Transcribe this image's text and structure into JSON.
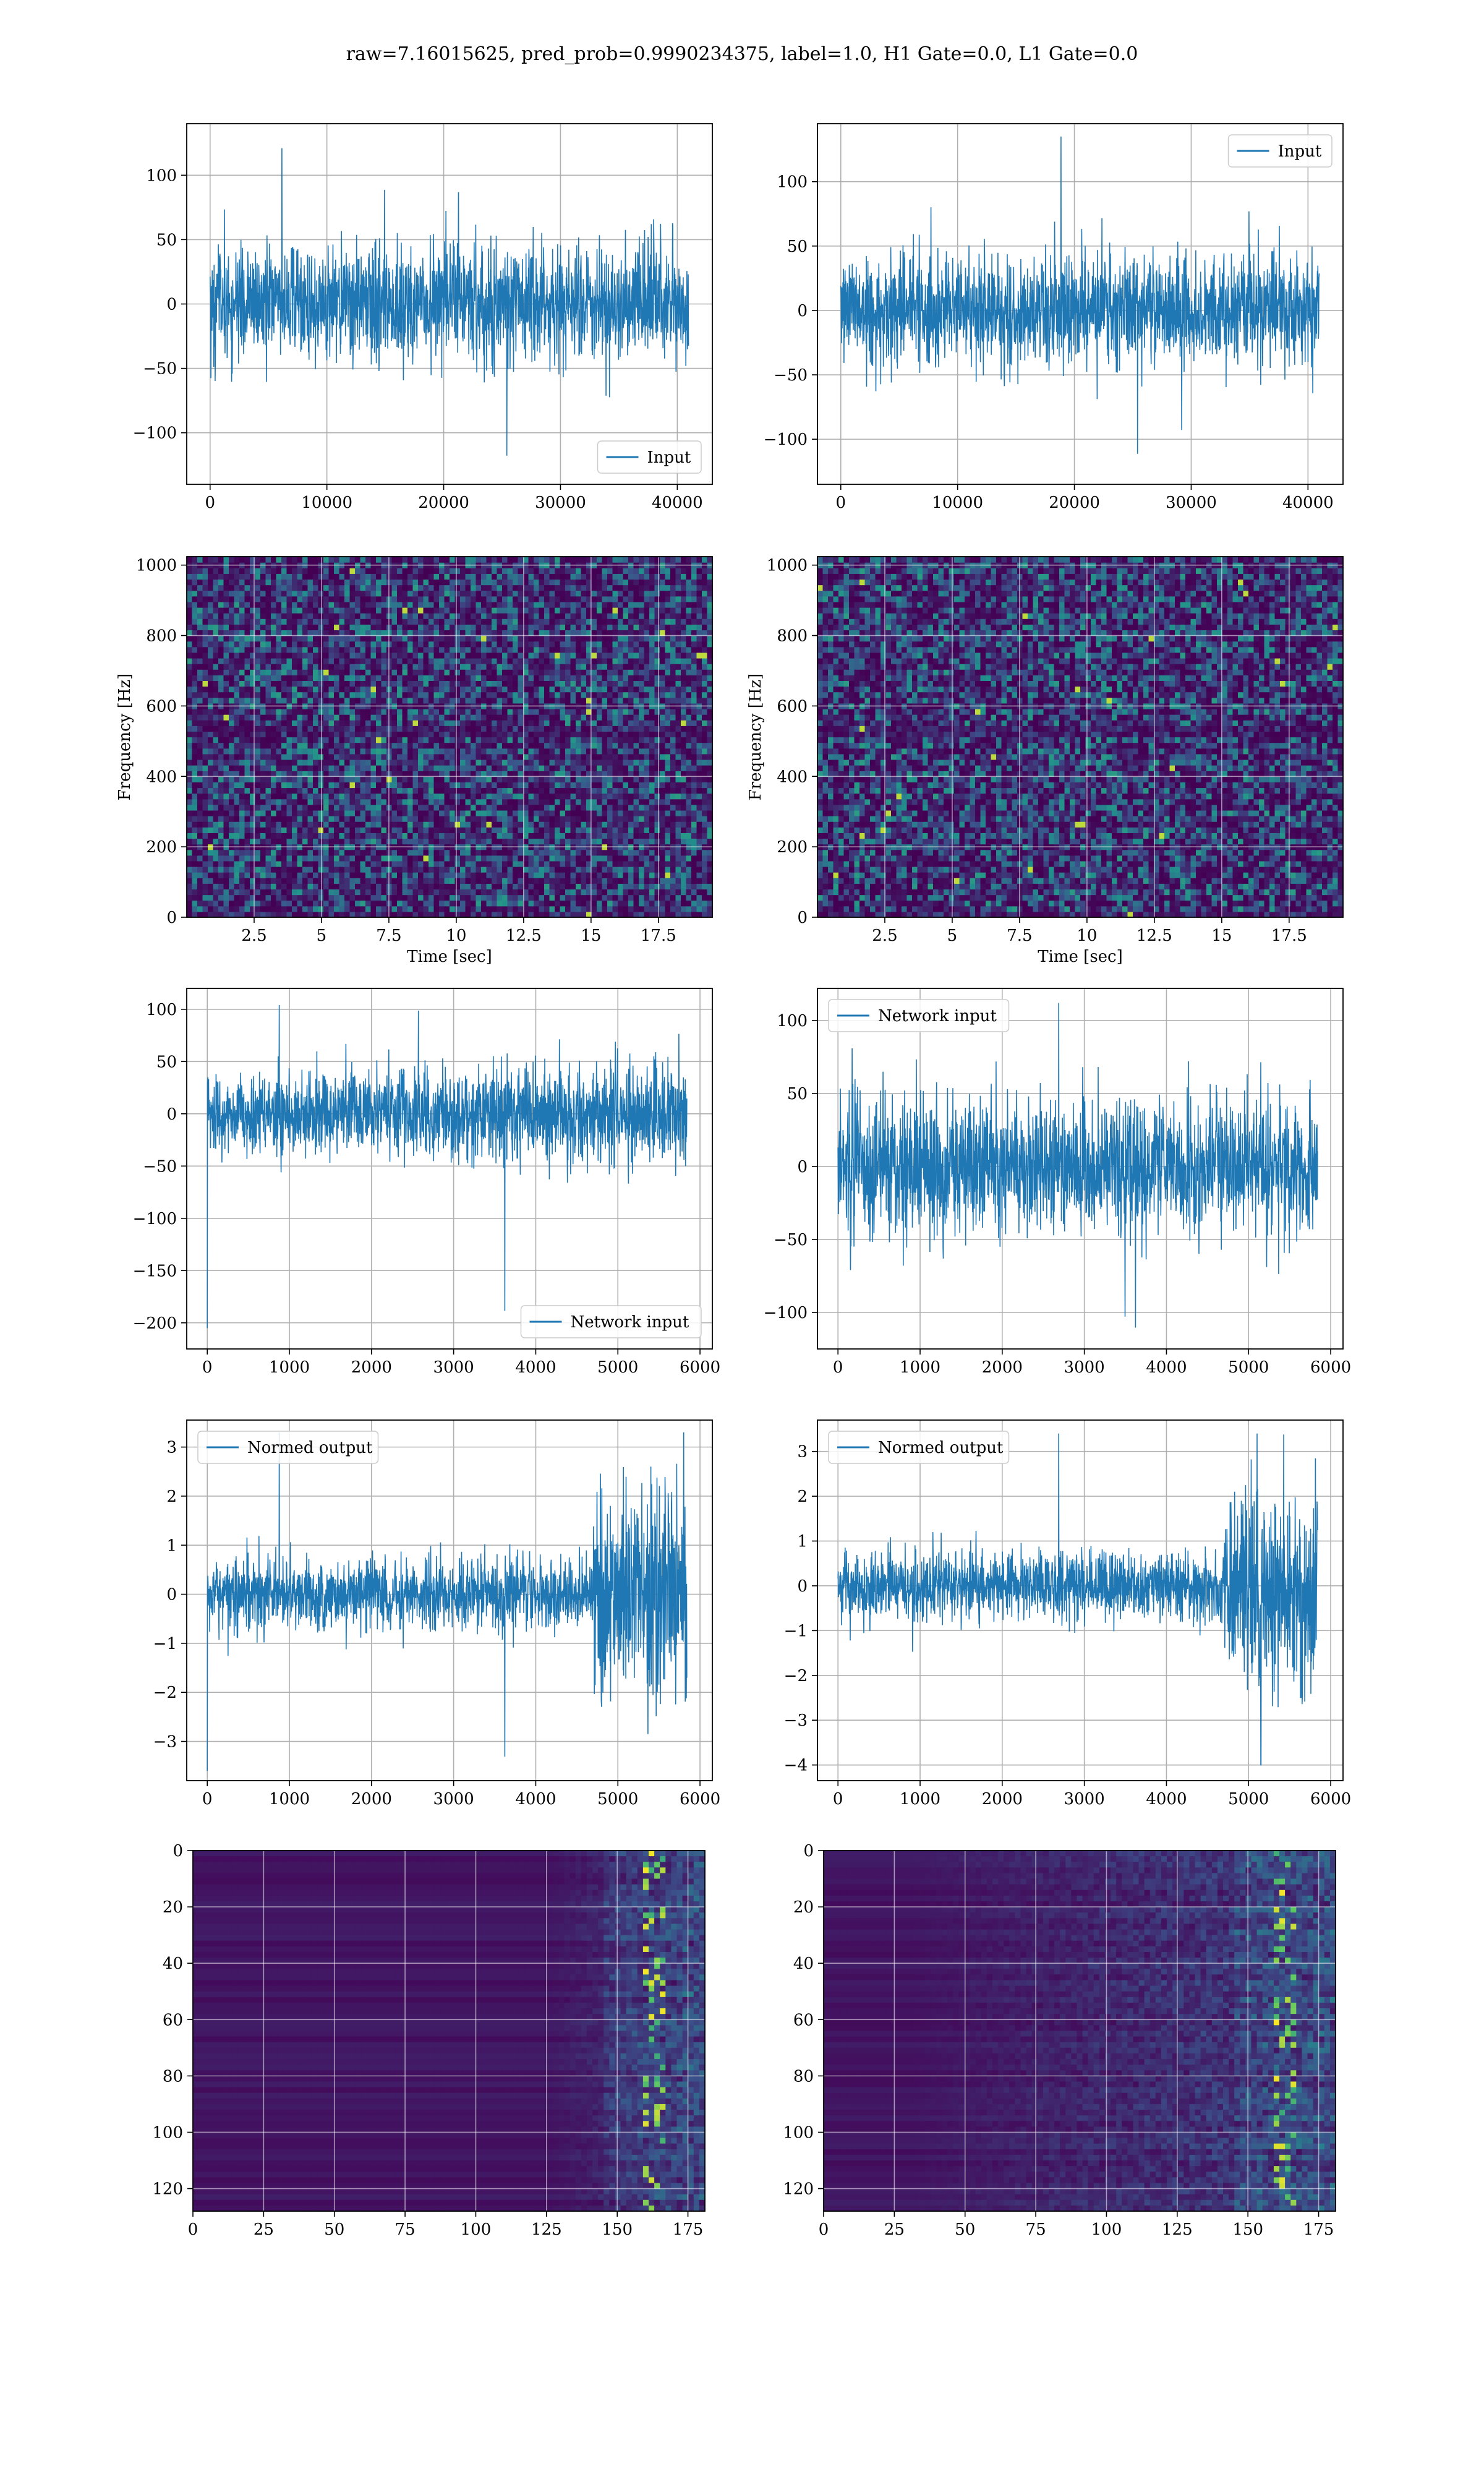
{
  "figure": {
    "suptitle": "raw=7.16015625, pred_prob=0.9990234375, label=1.0, H1 Gate=0.0, L1 Gate=0.0"
  },
  "colors": {
    "line": "#1f77b4",
    "viridis_dark": "#440154",
    "viridis_blue": "#2f6a8c",
    "viridis_teal": "#21918c",
    "viridis_green": "#5ec962",
    "viridis_yellow": "#fde725",
    "grid": "#b0b0b0"
  },
  "chart_data": [
    {
      "id": "h1-input",
      "type": "line",
      "series": [
        {
          "name": "Input",
          "kind": "noise",
          "x_max": 40960,
          "center": 0,
          "sigma": 22,
          "extreme_min": -128,
          "extreme_max": 121
        }
      ],
      "xlim": [
        -2000,
        43000
      ],
      "ylim": [
        -140,
        140
      ],
      "xticks": [
        0,
        10000,
        20000,
        30000,
        40000
      ],
      "yticks": [
        -100,
        -50,
        0,
        50,
        100
      ],
      "legend": "lower right",
      "grid": true,
      "xlabel": "",
      "ylabel": ""
    },
    {
      "id": "l1-input",
      "type": "line",
      "series": [
        {
          "name": "Input",
          "kind": "noise",
          "x_max": 40960,
          "center": 0,
          "sigma": 21,
          "extreme_min": -121,
          "extreme_max": 135
        }
      ],
      "xlim": [
        -2000,
        43000
      ],
      "ylim": [
        -135,
        145
      ],
      "xticks": [
        0,
        10000,
        20000,
        30000,
        40000
      ],
      "yticks": [
        -100,
        -50,
        0,
        50,
        100
      ],
      "legend": "upper right",
      "grid": true,
      "xlabel": "",
      "ylabel": ""
    },
    {
      "id": "h1-spectrogram",
      "type": "heatmap",
      "xlim": [
        0,
        19.5
      ],
      "ylim": [
        0,
        1024
      ],
      "xticks": [
        2.5,
        5.0,
        7.5,
        10.0,
        12.5,
        15.0,
        17.5
      ],
      "yticks": [
        0,
        200,
        400,
        600,
        800,
        1000
      ],
      "xlabel": "Time [sec]",
      "ylabel": "Frequency [Hz]",
      "grid": true
    },
    {
      "id": "l1-spectrogram",
      "type": "heatmap",
      "xlim": [
        0,
        19.5
      ],
      "ylim": [
        0,
        1024
      ],
      "xticks": [
        2.5,
        5.0,
        7.5,
        10.0,
        12.5,
        15.0,
        17.5
      ],
      "yticks": [
        0,
        200,
        400,
        600,
        800,
        1000
      ],
      "xlabel": "Time [sec]",
      "ylabel": "Frequency [Hz]",
      "grid": true
    },
    {
      "id": "h1-network-input",
      "type": "line",
      "series": [
        {
          "name": "Network input",
          "kind": "noise",
          "x_max": 5840,
          "center": 0,
          "sigma": 18,
          "extreme_min": -205,
          "extreme_max": 104,
          "spike_x": 0,
          "spike_y": -205
        }
      ],
      "xlim": [
        -250,
        6150
      ],
      "ylim": [
        -225,
        120
      ],
      "xticks": [
        0,
        1000,
        2000,
        3000,
        4000,
        5000,
        6000
      ],
      "yticks": [
        -200,
        -150,
        -100,
        -50,
        0,
        50,
        100
      ],
      "legend": "lower right",
      "grid": true,
      "xlabel": "",
      "ylabel": ""
    },
    {
      "id": "l1-network-input",
      "type": "line",
      "series": [
        {
          "name": "Network input",
          "kind": "noise",
          "x_max": 5840,
          "center": 0,
          "sigma": 22,
          "extreme_min": -120,
          "extreme_max": 112
        }
      ],
      "xlim": [
        -250,
        6150
      ],
      "ylim": [
        -125,
        122
      ],
      "xticks": [
        0,
        1000,
        2000,
        3000,
        4000,
        5000,
        6000
      ],
      "yticks": [
        -100,
        -50,
        0,
        50,
        100
      ],
      "legend": "upper left",
      "grid": true,
      "xlabel": "",
      "ylabel": ""
    },
    {
      "id": "h1-normed-output",
      "type": "line",
      "series": [
        {
          "name": "Normed output",
          "kind": "burst",
          "x_max": 5840,
          "center": 0,
          "sigma": 0.35,
          "burst_start": 4700,
          "burst_sigma": 1.1,
          "extreme_min": -3.6,
          "extreme_max": 3.3,
          "spike_x": 0,
          "spike_y": -3.6
        }
      ],
      "xlim": [
        -250,
        6150
      ],
      "ylim": [
        -3.8,
        3.55
      ],
      "xticks": [
        0,
        1000,
        2000,
        3000,
        4000,
        5000,
        6000
      ],
      "yticks": [
        -3,
        -2,
        -1,
        0,
        1,
        2,
        3
      ],
      "legend": "upper left",
      "grid": true,
      "xlabel": "",
      "ylabel": ""
    },
    {
      "id": "l1-normed-output",
      "type": "line",
      "series": [
        {
          "name": "Normed output",
          "kind": "burst",
          "x_max": 5840,
          "center": 0,
          "sigma": 0.38,
          "burst_start": 4700,
          "burst_sigma": 1.1,
          "extreme_min": -4.0,
          "extreme_max": 3.4,
          "spike_x": 5150,
          "spike_y": -4.0
        }
      ],
      "xlim": [
        -250,
        6150
      ],
      "ylim": [
        -4.35,
        3.7
      ],
      "xticks": [
        0,
        1000,
        2000,
        3000,
        4000,
        5000,
        6000
      ],
      "yticks": [
        -4,
        -3,
        -2,
        -1,
        0,
        1,
        2,
        3
      ],
      "legend": "upper left",
      "grid": true,
      "xlabel": "",
      "ylabel": ""
    },
    {
      "id": "h1-feature-map",
      "type": "heatmap",
      "xlim": [
        0,
        181
      ],
      "ylim": [
        0,
        128
      ],
      "y_inverted": true,
      "xticks": [
        0,
        25,
        50,
        75,
        100,
        125,
        150,
        175
      ],
      "yticks": [
        0,
        20,
        40,
        60,
        80,
        100,
        120
      ],
      "activity_onset": 125,
      "hotspot_x": 163,
      "grid": true,
      "xlabel": "",
      "ylabel": ""
    },
    {
      "id": "l1-feature-map",
      "type": "heatmap",
      "xlim": [
        0,
        181
      ],
      "ylim": [
        0,
        128
      ],
      "y_inverted": true,
      "xticks": [
        0,
        25,
        50,
        75,
        100,
        125,
        150,
        175
      ],
      "yticks": [
        0,
        20,
        40,
        60,
        80,
        100,
        120
      ],
      "activity_onset": 30,
      "hotspot_x": 163,
      "grid": true,
      "xlabel": "",
      "ylabel": ""
    }
  ]
}
